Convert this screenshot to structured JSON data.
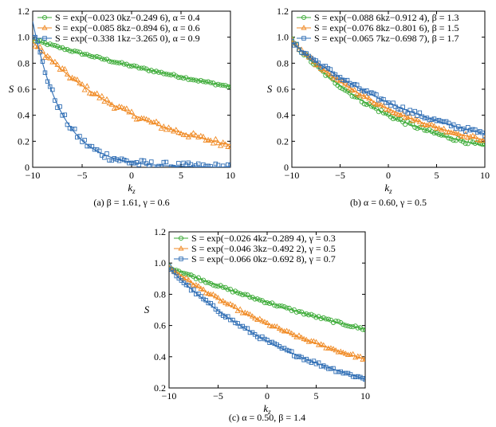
{
  "chart_data": [
    {
      "type": "scatter",
      "panel": "a",
      "caption": "(a) β = 1.61, γ = 0.6",
      "xlabel": "k_z",
      "ylabel": "S",
      "xlim": [
        -10,
        10
      ],
      "ylim": [
        0,
        1.2
      ],
      "xticks": [
        -10,
        -5,
        0,
        5,
        10
      ],
      "yticks": [
        0,
        0.2,
        0.4,
        0.6,
        0.8,
        1.0,
        1.2
      ],
      "xtick_labels": [
        "−10",
        "−5",
        "0",
        "5",
        "10"
      ],
      "ytick_labels": [
        "0",
        "0.2",
        "0.4",
        "0.6",
        "0.8",
        "1.0",
        "1.2"
      ],
      "grid": false,
      "legend_position": "top-left",
      "series": [
        {
          "name": "S = exp(−0.023 0kz−0.249 6), α = 0.4",
          "color": "#3aaa35",
          "marker": "circle",
          "a": 0.023,
          "b": 0.2496,
          "noise": 0.008
        },
        {
          "name": "S = exp(−0.085 8kz−0.894 6), α = 0.6",
          "color": "#f08a24",
          "marker": "triangle",
          "a": 0.0858,
          "b": 0.8946,
          "noise": 0.025
        },
        {
          "name": "S = exp(−0.338 1kz−3.265 0), α = 0.9",
          "color": "#2e6db4",
          "marker": "square",
          "a": 0.3381,
          "b": 3.265,
          "noise": 0.03
        }
      ]
    },
    {
      "type": "scatter",
      "panel": "b",
      "caption": "(b) α = 0.60, γ = 0.5",
      "xlabel": "k_z",
      "ylabel": "S",
      "xlim": [
        -10,
        10
      ],
      "ylim": [
        0,
        1.2
      ],
      "xticks": [
        -10,
        -5,
        0,
        5,
        10
      ],
      "yticks": [
        0,
        0.2,
        0.4,
        0.6,
        0.8,
        1.0,
        1.2
      ],
      "xtick_labels": [
        "−10",
        "−5",
        "0",
        "5",
        "10"
      ],
      "ytick_labels": [
        "0",
        "0.2",
        "0.4",
        "0.6",
        "0.8",
        "1.0",
        "1.2"
      ],
      "grid": false,
      "legend_position": "top-left",
      "series": [
        {
          "name": "S = exp(−0.088 6kz−0.912 4), β = 1.3",
          "color": "#3aaa35",
          "marker": "circle",
          "a": 0.0886,
          "b": 0.9124,
          "noise": 0.015
        },
        {
          "name": "S = exp(−0.076 8kz−0.801 6), β = 1.5",
          "color": "#f08a24",
          "marker": "triangle",
          "a": 0.0768,
          "b": 0.8016,
          "noise": 0.015
        },
        {
          "name": "S = exp(−0.065 7kz−0.698 7), β = 1.7",
          "color": "#2e6db4",
          "marker": "square",
          "a": 0.0657,
          "b": 0.6987,
          "noise": 0.02
        }
      ]
    },
    {
      "type": "scatter",
      "panel": "c",
      "caption": "(c) α = 0.50, β = 1.4",
      "xlabel": "k_z",
      "ylabel": "S",
      "xlim": [
        -10,
        10
      ],
      "ylim": [
        0.2,
        1.2
      ],
      "xticks": [
        -10,
        -5,
        0,
        5,
        10
      ],
      "yticks": [
        0.2,
        0.4,
        0.6,
        0.8,
        1.0,
        1.2
      ],
      "xtick_labels": [
        "−10",
        "−5",
        "0",
        "5",
        "10"
      ],
      "ytick_labels": [
        "0.2",
        "0.4",
        "0.6",
        "0.8",
        "1.0",
        "1.2"
      ],
      "grid": false,
      "legend_position": "top-left",
      "series": [
        {
          "name": "S = exp(−0.026 4kz−0.289 4), γ = 0.3",
          "color": "#3aaa35",
          "marker": "circle",
          "a": 0.0264,
          "b": 0.2894,
          "noise": 0.008
        },
        {
          "name": "S = exp(−0.046 3kz−0.492 2), γ = 0.5",
          "color": "#f08a24",
          "marker": "triangle",
          "a": 0.0463,
          "b": 0.4922,
          "noise": 0.01
        },
        {
          "name": "S = exp(−0.066 0kz−0.692 8), γ = 0.7",
          "color": "#2e6db4",
          "marker": "square",
          "a": 0.066,
          "b": 0.6928,
          "noise": 0.012
        }
      ]
    }
  ]
}
